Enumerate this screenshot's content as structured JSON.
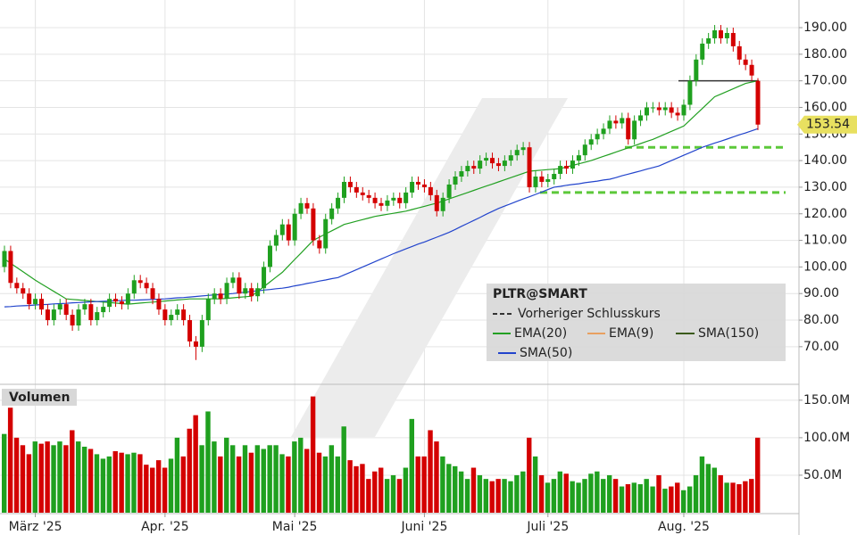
{
  "chart_data": {
    "type": "candlestick",
    "symbol": "PLTR@SMART",
    "categories": [
      null,
      null,
      null,
      null,
      null,
      "März '25",
      null,
      null,
      null,
      null,
      null,
      null,
      null,
      null,
      null,
      null,
      null,
      null,
      null,
      null,
      null,
      null,
      null,
      null,
      null,
      null,
      "Apr. '25",
      null,
      null,
      null,
      null,
      null,
      null,
      null,
      null,
      null,
      null,
      null,
      null,
      null,
      null,
      null,
      null,
      null,
      null,
      null,
      null,
      "Mai '25",
      null,
      null,
      null,
      null,
      null,
      null,
      null,
      null,
      null,
      null,
      null,
      null,
      null,
      null,
      null,
      null,
      null,
      null,
      null,
      null,
      "Juni '25",
      null,
      null,
      null,
      null,
      null,
      null,
      null,
      null,
      null,
      null,
      null,
      null,
      null,
      null,
      null,
      null,
      null,
      null,
      null,
      "Juli '25",
      null,
      null,
      null,
      null,
      null,
      null,
      null,
      null,
      null,
      null,
      null,
      null,
      null,
      null,
      null,
      null,
      null,
      null,
      null,
      null,
      null,
      "Aug. '25",
      null,
      null,
      null,
      null,
      null,
      null,
      null,
      null,
      null,
      null,
      null,
      null
    ],
    "open": [
      100,
      106,
      94,
      92,
      90,
      86,
      88,
      84,
      80,
      84,
      86,
      82,
      78,
      84,
      86,
      80,
      83,
      85,
      88,
      87,
      86,
      90,
      95,
      94,
      92,
      88,
      84,
      80,
      82,
      84,
      80,
      72,
      70,
      80,
      88,
      90,
      88,
      94,
      96,
      90,
      92,
      89,
      92,
      100,
      108,
      112,
      116,
      110,
      120,
      124,
      122,
      110,
      107,
      118,
      122,
      126,
      132,
      130,
      128,
      127,
      126,
      124,
      123,
      125,
      126,
      124,
      128,
      132,
      131,
      130,
      127,
      121,
      126,
      131,
      134,
      136,
      138,
      137,
      140,
      141,
      139,
      138,
      140,
      142,
      144,
      145,
      130,
      134,
      132,
      133,
      135,
      138,
      137,
      140,
      142,
      146,
      148,
      150,
      152,
      155,
      154,
      156,
      148,
      155,
      157,
      160,
      160,
      159,
      160,
      158,
      157,
      161,
      170,
      178,
      184,
      186,
      189,
      186,
      188,
      183,
      178,
      176,
      170
    ],
    "high": [
      108,
      108,
      96,
      94,
      92,
      90,
      90,
      86,
      86,
      88,
      88,
      84,
      86,
      88,
      88,
      85,
      87,
      90,
      90,
      89,
      92,
      97,
      97,
      96,
      94,
      90,
      86,
      84,
      86,
      86,
      82,
      74,
      82,
      90,
      92,
      92,
      96,
      98,
      98,
      94,
      94,
      94,
      102,
      110,
      114,
      118,
      118,
      122,
      126,
      126,
      124,
      112,
      120,
      124,
      128,
      134,
      134,
      132,
      130,
      129,
      128,
      126,
      127,
      128,
      128,
      130,
      134,
      134,
      133,
      132,
      129,
      128,
      133,
      136,
      138,
      140,
      140,
      142,
      143,
      143,
      141,
      142,
      144,
      146,
      147,
      147,
      136,
      136,
      135,
      137,
      140,
      140,
      142,
      144,
      148,
      150,
      152,
      154,
      157,
      157,
      158,
      158,
      157,
      159,
      162,
      162,
      162,
      162,
      162,
      160,
      163,
      172,
      180,
      186,
      188,
      191,
      191,
      190,
      190,
      185,
      180,
      178,
      171
    ],
    "low": [
      98,
      92,
      90,
      88,
      84,
      84,
      82,
      78,
      78,
      82,
      80,
      76,
      76,
      82,
      78,
      78,
      81,
      83,
      85,
      84,
      84,
      88,
      92,
      90,
      86,
      82,
      78,
      78,
      80,
      78,
      70,
      65,
      68,
      78,
      86,
      86,
      86,
      92,
      88,
      88,
      87,
      87,
      90,
      98,
      106,
      110,
      108,
      108,
      118,
      120,
      108,
      105,
      105,
      116,
      120,
      124,
      128,
      126,
      125,
      124,
      122,
      121,
      121,
      123,
      122,
      122,
      126,
      129,
      128,
      125,
      119,
      119,
      124,
      129,
      132,
      134,
      135,
      135,
      138,
      137,
      136,
      136,
      138,
      140,
      142,
      128,
      128,
      130,
      130,
      131,
      133,
      135,
      135,
      138,
      140,
      144,
      146,
      148,
      150,
      152,
      152,
      146,
      146,
      153,
      155,
      158,
      157,
      157,
      156,
      155,
      155,
      159,
      168,
      176,
      182,
      184,
      184,
      184,
      181,
      176,
      174,
      170,
      151.5
    ],
    "close": [
      106,
      94,
      92,
      90,
      86,
      88,
      84,
      80,
      84,
      86,
      82,
      78,
      84,
      86,
      80,
      83,
      85,
      88,
      87,
      86,
      90,
      95,
      94,
      92,
      88,
      84,
      80,
      82,
      84,
      80,
      72,
      70,
      80,
      88,
      90,
      88,
      94,
      96,
      90,
      92,
      89,
      92,
      100,
      108,
      112,
      116,
      110,
      120,
      124,
      122,
      110,
      107,
      118,
      122,
      126,
      132,
      130,
      128,
      127,
      126,
      124,
      123,
      125,
      126,
      124,
      128,
      132,
      131,
      130,
      127,
      121,
      126,
      131,
      134,
      136,
      138,
      137,
      140,
      141,
      139,
      138,
      140,
      142,
      144,
      145,
      130,
      134,
      132,
      133,
      135,
      138,
      137,
      140,
      142,
      146,
      148,
      150,
      152,
      155,
      154,
      156,
      148,
      155,
      157,
      160,
      160,
      159,
      160,
      158,
      157,
      161,
      170,
      178,
      184,
      186,
      189,
      186,
      188,
      183,
      178,
      176,
      172,
      153.54
    ],
    "up_color": "#1fa01f",
    "down_color": "#d40000",
    "ylim": [
      56.2,
      200.4
    ],
    "yticks": [
      {
        "value": 70,
        "label": "70.00"
      },
      {
        "value": 80,
        "label": "80.00"
      },
      {
        "value": 90,
        "label": "90.00"
      },
      {
        "value": 100,
        "label": "100.00"
      },
      {
        "value": 110,
        "label": "110.00"
      },
      {
        "value": 120,
        "label": "120.00"
      },
      {
        "value": 130,
        "label": "130.00"
      },
      {
        "value": 140,
        "label": "140.00"
      },
      {
        "value": 150,
        "label": "150.00"
      },
      {
        "value": 160,
        "label": "160.00"
      },
      {
        "value": 170,
        "label": "170.00"
      },
      {
        "value": 180,
        "label": "180.00"
      },
      {
        "value": 190,
        "label": "190.00"
      }
    ],
    "grid": true,
    "lines": [
      {
        "name": "EMA(20)",
        "color": "#22a022",
        "values": [
          103,
          101.4,
          99.8,
          98.2,
          96.6,
          95,
          93.6,
          92.2,
          90.8,
          89.4,
          88,
          87.8,
          87.6,
          87.4,
          87.2,
          87,
          86.8,
          86.6,
          86.4,
          86.2,
          86,
          86.2,
          86.4,
          86.6,
          86.8,
          87,
          87.2,
          87.4,
          87.6,
          87.8,
          88,
          88,
          88,
          88,
          88,
          88,
          88.2,
          88.4,
          88.6,
          88.8,
          89,
          90.8,
          92.6,
          94.4,
          96.2,
          98,
          100.4,
          102.8,
          105.2,
          107.6,
          110,
          111.2,
          112.4,
          113.6,
          114.8,
          116,
          116.6,
          117.2,
          117.8,
          118.4,
          119,
          119.4,
          119.8,
          120.2,
          120.6,
          121,
          121.6,
          122.2,
          122.8,
          123.4,
          124,
          124.8,
          125.6,
          126.4,
          127.2,
          128,
          128.8,
          129.6,
          130.4,
          131.2,
          132,
          132.8,
          133.6,
          134.4,
          135.2,
          136,
          136.2,
          136.4,
          136.6,
          136.8,
          137,
          137.6,
          138.2,
          138.8,
          139.4,
          140,
          140.8,
          141.6,
          142.4,
          143.2,
          144,
          144.8,
          145.6,
          146.4,
          147.2,
          148,
          149,
          150,
          151,
          152,
          153,
          155.2,
          157.4,
          159.6,
          161.8,
          164,
          165,
          166,
          167,
          168,
          169,
          169.5,
          170
        ]
      },
      {
        "name": "SMA(50)",
        "color": "#2244cc",
        "values": [
          85,
          85.1,
          85.3,
          85.4,
          85.5,
          85.7,
          85.8,
          85.9,
          86.1,
          86.2,
          86.3,
          86.5,
          86.6,
          86.7,
          86.9,
          87,
          87.1,
          87.2,
          87.3,
          87.4,
          87.5,
          87.5,
          87.6,
          87.7,
          87.8,
          87.9,
          88,
          88.2,
          88.4,
          88.5,
          88.7,
          88.9,
          89.1,
          89.3,
          89.5,
          89.6,
          89.8,
          90,
          90.3,
          90.5,
          90.8,
          91,
          91.3,
          91.5,
          91.8,
          92,
          92.4,
          92.9,
          93.3,
          93.8,
          94.2,
          94.7,
          95.1,
          95.6,
          96,
          97,
          98,
          99,
          100,
          101,
          102,
          103,
          104,
          105,
          105.9,
          106.8,
          107.7,
          108.6,
          109.4,
          110.3,
          111.2,
          112.1,
          113,
          114.1,
          115.3,
          116.4,
          117.5,
          118.6,
          119.8,
          120.9,
          122,
          122.9,
          123.8,
          124.7,
          125.6,
          126.4,
          127.3,
          128.2,
          129.1,
          130,
          130.3,
          130.7,
          131,
          131.3,
          131.7,
          132,
          132.3,
          132.7,
          133,
          133.6,
          134.3,
          134.9,
          135.5,
          136.1,
          136.8,
          137.4,
          138,
          139,
          140,
          141,
          142,
          143,
          144,
          145,
          145.8,
          146.6,
          147.3,
          148.1,
          148.9,
          149.7,
          150.4,
          151.2,
          152
        ]
      }
    ],
    "previous_close": {
      "name": "Vorheriger Schlusskurs",
      "value": 170,
      "color": "#333333"
    },
    "levels": [
      145,
      128
    ],
    "level_color": "#5cc83a",
    "legend_extra": [
      {
        "name": "EMA(9)",
        "color": "#e8a060"
      },
      {
        "name": "SMA(150)",
        "color": "#3a5a1a"
      }
    ],
    "last_price_color": "#e8e060",
    "volume": {
      "title": "Volumen",
      "values": [
        105,
        140,
        100,
        90,
        78,
        95,
        92,
        95,
        90,
        95,
        90,
        110,
        95,
        88,
        85,
        78,
        72,
        75,
        82,
        80,
        78,
        80,
        78,
        64,
        60,
        70,
        60,
        72,
        100,
        75,
        112,
        130,
        90,
        135,
        95,
        75,
        100,
        90,
        75,
        90,
        80,
        90,
        85,
        90,
        90,
        78,
        75,
        95,
        100,
        85,
        155,
        80,
        75,
        90,
        75,
        115,
        70,
        62,
        65,
        45,
        55,
        60,
        45,
        50,
        45,
        60,
        125,
        75,
        75,
        110,
        95,
        75,
        65,
        62,
        55,
        45,
        60,
        50,
        45,
        42,
        45,
        45,
        42,
        50,
        55,
        100,
        75,
        50,
        40,
        45,
        55,
        52,
        42,
        40,
        45,
        52,
        55,
        45,
        50,
        45,
        35,
        38,
        40,
        38,
        45,
        35,
        50,
        32,
        35,
        40,
        30,
        35,
        50,
        75,
        65,
        60,
        50,
        40,
        40,
        38,
        42,
        45,
        100
      ],
      "ylim": [
        0,
        170
      ],
      "yticks": [
        {
          "value": 50,
          "label": "50.0M"
        },
        {
          "value": 100,
          "label": "100.0M"
        },
        {
          "value": 150,
          "label": "150.0M"
        }
      ]
    }
  }
}
